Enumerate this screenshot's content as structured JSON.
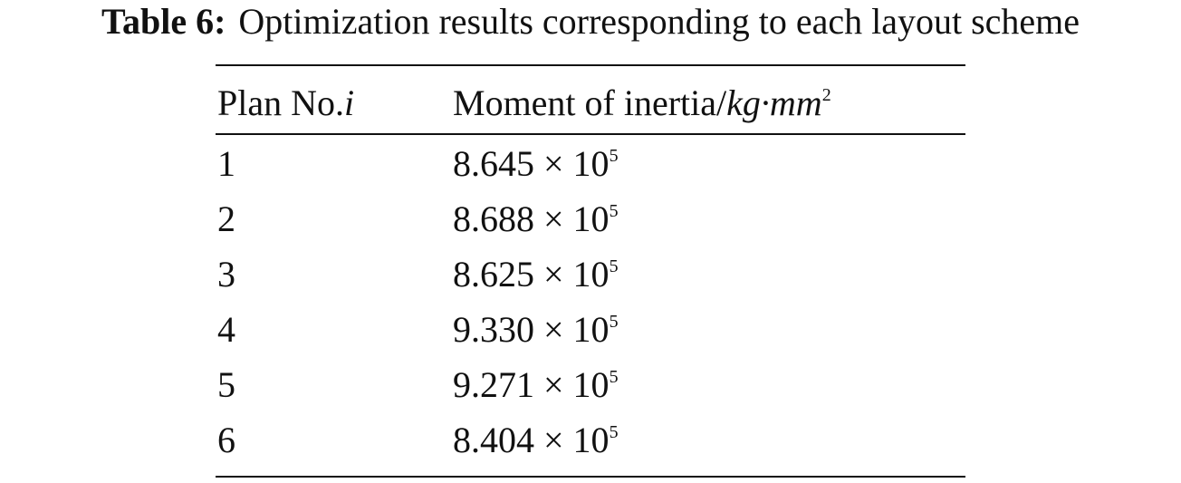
{
  "caption": {
    "label": "Table 6:",
    "text": "Optimization results corresponding to each layout scheme"
  },
  "table": {
    "headers": [
      [
        "Plan No.",
        "i"
      ],
      [
        "Moment of inertia/",
        "kg·mm",
        "2"
      ]
    ],
    "rows": [
      [
        "1",
        [
          "8.645 × 10",
          "5"
        ]
      ],
      [
        "2",
        [
          "8.688 × 10",
          "5"
        ]
      ],
      [
        "3",
        [
          "8.625 × 10",
          "5"
        ]
      ],
      [
        "4",
        [
          "9.330 × 10",
          "5"
        ]
      ],
      [
        "5",
        [
          "9.271 × 10",
          "5"
        ]
      ],
      [
        "6",
        [
          "8.404 × 10",
          "5"
        ]
      ]
    ]
  }
}
